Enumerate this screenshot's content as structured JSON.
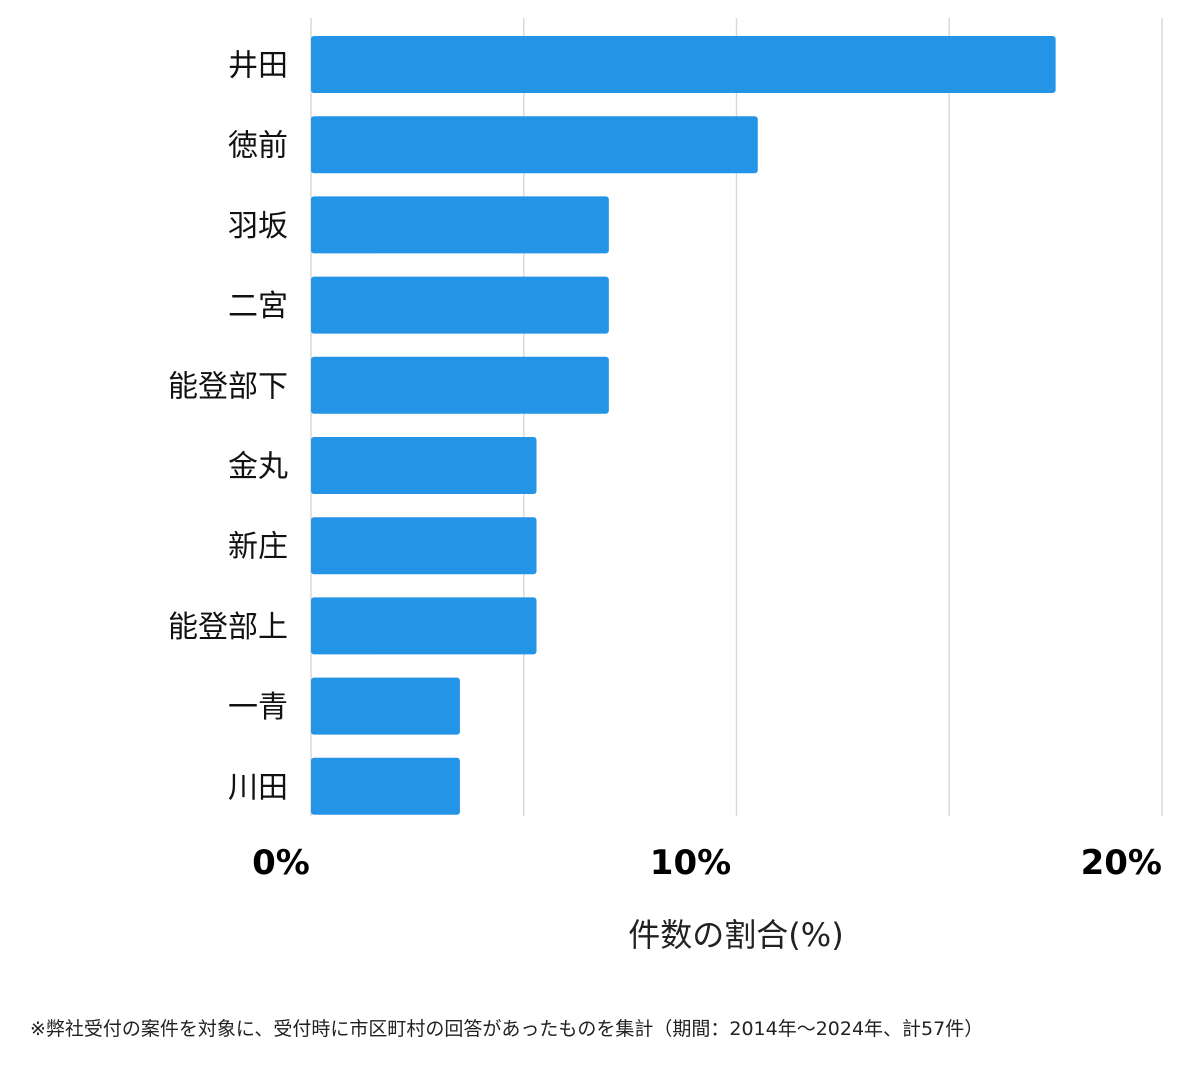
{
  "chart_data": {
    "type": "bar",
    "orientation": "horizontal",
    "categories": [
      "井田",
      "徳前",
      "羽坂",
      "二宮",
      "能登部下",
      "金丸",
      "新庄",
      "能登部上",
      "一青",
      "川田"
    ],
    "values": [
      17.5,
      10.5,
      7.0,
      7.0,
      7.0,
      5.3,
      5.3,
      5.3,
      3.5,
      3.5
    ],
    "xlim": [
      0,
      20
    ],
    "xticks": [
      {
        "value": 0,
        "label": "0%"
      },
      {
        "value": 10,
        "label": "10%"
      },
      {
        "value": 20,
        "label": "20%"
      }
    ],
    "gridlines": [
      0,
      5,
      10,
      15,
      20
    ],
    "xlabel": "件数の割合(%)",
    "grid": true,
    "bar_color": "#2494e6"
  },
  "footnote": "※弊社受付の案件を対象に、受付時に市区町村の回答があったものを集計（期間：2014年～2024年、計57件）"
}
